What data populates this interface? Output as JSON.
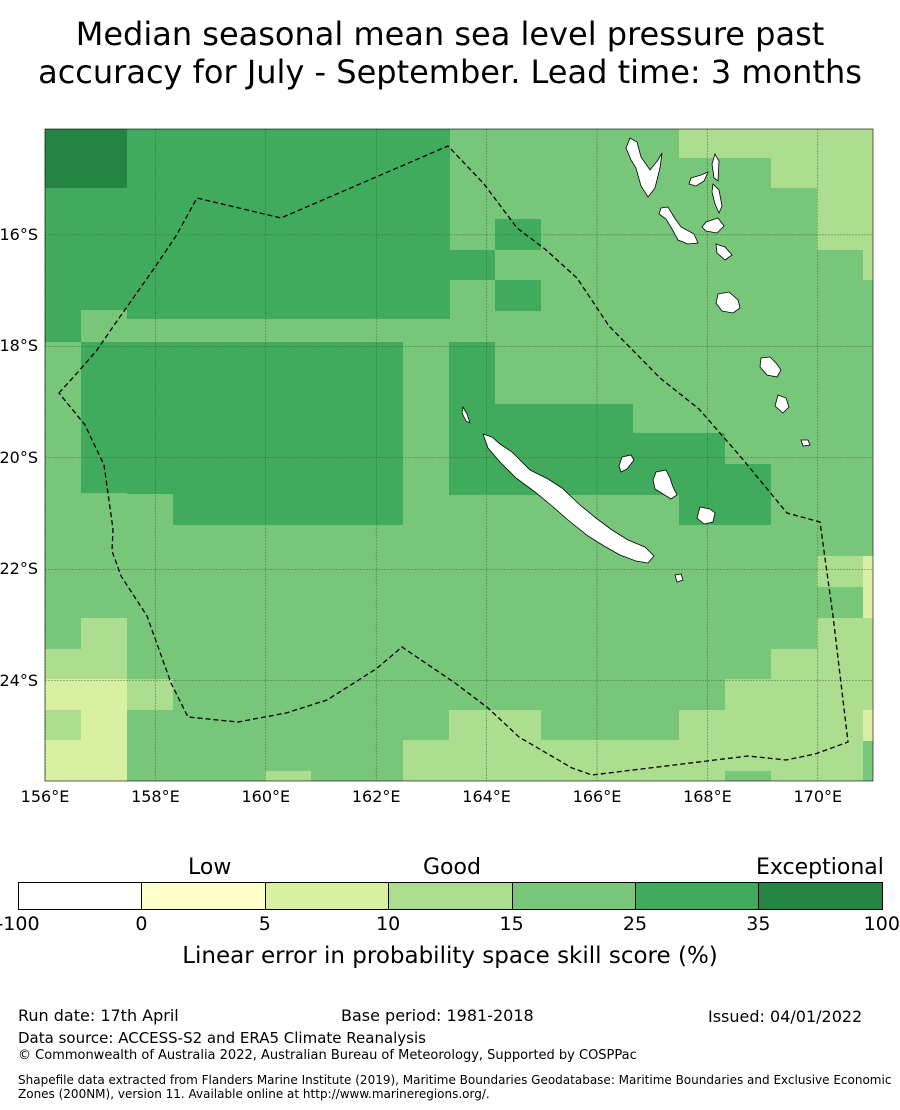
{
  "title_line1": "Median seasonal mean sea level pressure past",
  "title_line2": "accuracy for July - September. Lead time: 3 months",
  "map": {
    "lon_range": [
      156,
      171
    ],
    "lat_range": [
      -25.8,
      -14.1
    ],
    "lat_ticks": [
      {
        "value": -16,
        "label": "16°S"
      },
      {
        "value": -18,
        "label": "18°S"
      },
      {
        "value": -20,
        "label": "20°S"
      },
      {
        "value": -22,
        "label": "22°S"
      },
      {
        "value": -24,
        "label": "24°S"
      }
    ],
    "lon_ticks": [
      {
        "value": 156,
        "label": "156°E"
      },
      {
        "value": 158,
        "label": "158°E"
      },
      {
        "value": 160,
        "label": "160°E"
      },
      {
        "value": 162,
        "label": "162°E"
      },
      {
        "value": 164,
        "label": "164°E"
      },
      {
        "value": 166,
        "label": "166°E"
      },
      {
        "value": 168,
        "label": "168°E"
      },
      {
        "value": 170,
        "label": "170°E"
      }
    ],
    "skill_category_colors": [
      "#ffffff",
      "#ffffcc",
      "#d9f0a3",
      "#addd8e",
      "#78c679",
      "#41ab5d",
      "#238443"
    ],
    "ocean_color": "#78c679",
    "land_color": "#ffffff",
    "eez_boundary_style": "dashed"
  },
  "colorbar": {
    "categories": [
      "Low",
      "Good",
      "Exceptional"
    ],
    "ticks": [
      "-100",
      "0",
      "5",
      "10",
      "15",
      "25",
      "35",
      "100"
    ],
    "colors": [
      "#ffffff",
      "#ffffcc",
      "#d9f0a3",
      "#addd8e",
      "#78c679",
      "#41ab5d",
      "#238443"
    ],
    "label": "Linear error in probability space skill score (%)"
  },
  "footer": {
    "run_date": "Run date: 17th April",
    "base_period": "Base period: 1981-2018",
    "issued": "Issued: 04/01/2022",
    "data_source": "Data source: ACCESS-S2 and ERA5 Climate Reanalysis",
    "copyright": "© Commonwealth of Australia 2022, Australian Bureau of Meteorology, Supported by COSPPac",
    "shapefile": "Shapefile data extracted from Flanders Marine Institute (2019), Maritime Boundaries Geodatabase: Maritime Boundaries and Exclusive Economic Zones (200NM), version 11. Available online at http://www.marineregions.org/."
  }
}
